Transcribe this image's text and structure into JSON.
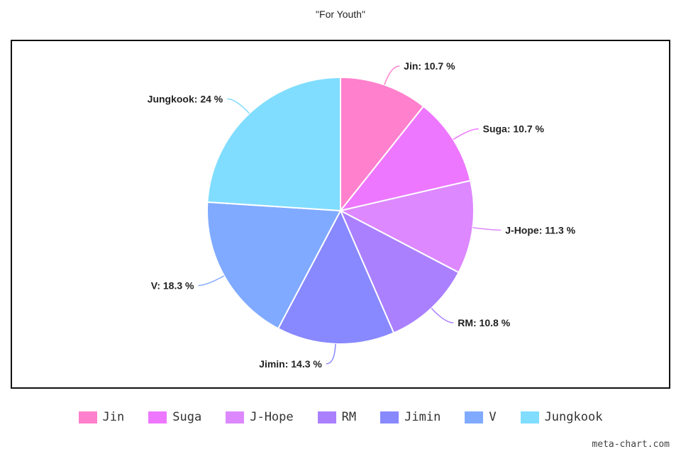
{
  "title": "\"For Youth\"",
  "watermark": "meta-chart.com",
  "chart_data": {
    "type": "pie",
    "title": "\"For Youth\"",
    "slices": [
      {
        "name": "Jin",
        "value": 10.7,
        "label": "Jin: 10.7 %",
        "color": "#ff80cc"
      },
      {
        "name": "Suga",
        "value": 10.7,
        "label": "Suga: 10.7 %",
        "color": "#ee77ff"
      },
      {
        "name": "J-Hope",
        "value": 11.3,
        "label": "J-Hope: 11.3 %",
        "color": "#dd88ff"
      },
      {
        "name": "RM",
        "value": 10.8,
        "label": "RM: 10.8 %",
        "color": "#aa80ff"
      },
      {
        "name": "Jimin",
        "value": 14.3,
        "label": "Jimin: 14.3 %",
        "color": "#8888ff"
      },
      {
        "name": "V",
        "value": 18.3,
        "label": "V: 18.3 %",
        "color": "#80aaff"
      },
      {
        "name": "Jungkook",
        "value": 24,
        "label": "Jungkook: 24 %",
        "color": "#80ddff"
      }
    ],
    "legend_position": "bottom"
  }
}
